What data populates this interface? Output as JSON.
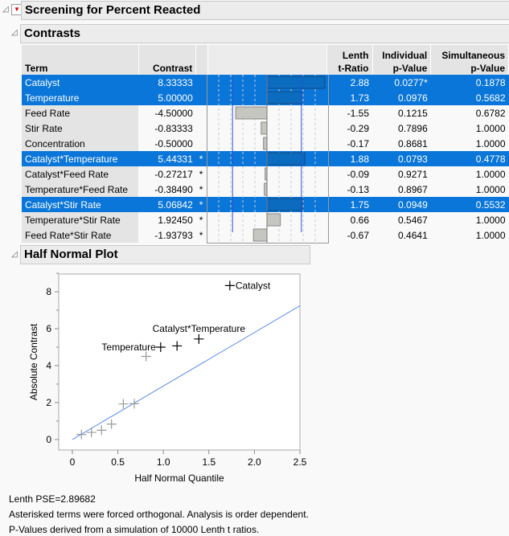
{
  "title": "Screening for Percent Reacted",
  "contrasts": {
    "title": "Contrasts",
    "headers": {
      "term": "Term",
      "contrast": "Contrast",
      "lenth1": "Lenth",
      "lenth2": "t-Ratio",
      "ind1": "Individual",
      "ind2": "p-Value",
      "sim1": "Simultaneous",
      "sim2": "p-Value"
    },
    "rows": [
      {
        "term": "Catalyst",
        "contrast": "8.33333",
        "star": "",
        "value": 8.33333,
        "t": "2.88",
        "ind": "0.0277*",
        "sim": "0.1878",
        "selected": true,
        "significant": true
      },
      {
        "term": "Temperature",
        "contrast": "5.00000",
        "star": "",
        "value": 5.0,
        "t": "1.73",
        "ind": "0.0976",
        "sim": "0.5682",
        "selected": true
      },
      {
        "term": "Feed Rate",
        "contrast": "-4.50000",
        "star": "",
        "value": -4.5,
        "t": "-1.55",
        "ind": "0.1215",
        "sim": "0.6782"
      },
      {
        "term": "Stir Rate",
        "contrast": "-0.83333",
        "star": "",
        "value": -0.83333,
        "t": "-0.29",
        "ind": "0.7896",
        "sim": "1.0000"
      },
      {
        "term": "Concentration",
        "contrast": "-0.50000",
        "star": "",
        "value": -0.5,
        "t": "-0.17",
        "ind": "0.8681",
        "sim": "1.0000"
      },
      {
        "term": "Catalyst*Temperature",
        "contrast": "5.44331",
        "star": "*",
        "value": 5.44331,
        "t": "1.88",
        "ind": "0.0793",
        "sim": "0.4778",
        "selected": true
      },
      {
        "term": "Catalyst*Feed Rate",
        "contrast": "-0.27217",
        "star": "*",
        "value": -0.27217,
        "t": "-0.09",
        "ind": "0.9271",
        "sim": "1.0000"
      },
      {
        "term": "Temperature*Feed Rate",
        "contrast": "-0.38490",
        "star": "*",
        "value": -0.3849,
        "t": "-0.13",
        "ind": "0.8967",
        "sim": "1.0000"
      },
      {
        "term": "Catalyst*Stir Rate",
        "contrast": "5.06842",
        "star": "*",
        "value": 5.06842,
        "t": "1.75",
        "ind": "0.0949",
        "sim": "0.5532",
        "selected": true
      },
      {
        "term": "Temperature*Stir Rate",
        "contrast": "1.92450",
        "star": "*",
        "value": 1.9245,
        "t": "0.66",
        "ind": "0.5467",
        "sim": "1.0000"
      },
      {
        "term": "Feed Rate*Stir Rate",
        "contrast": "-1.93793",
        "star": "*",
        "value": -1.93793,
        "t": "-0.67",
        "ind": "0.4641",
        "sim": "1.0000"
      }
    ]
  },
  "chart_data": {
    "type": "scatter",
    "title": "Half Normal Plot",
    "xlabel": "Half Normal Quantile",
    "ylabel": "Absolute Contrast",
    "xlim": [
      -0.15,
      2.5
    ],
    "ylim": [
      -0.57,
      8.96
    ],
    "xticks": [
      "0",
      "0.5",
      "1.0",
      "1.5",
      "2.0",
      "2.5"
    ],
    "xtick_values": [
      0,
      0.5,
      1,
      1.5,
      2,
      2.5
    ],
    "yticks": [
      "0",
      "2",
      "4",
      "6",
      "8"
    ],
    "ytick_values": [
      0,
      2,
      4,
      6,
      8
    ],
    "points": [
      {
        "x": 0.1,
        "y": 0.272,
        "label": "",
        "color": "#999999"
      },
      {
        "x": 0.21,
        "y": 0.385,
        "label": "",
        "color": "#999999"
      },
      {
        "x": 0.32,
        "y": 0.5,
        "label": "",
        "color": "#999999"
      },
      {
        "x": 0.43,
        "y": 0.833,
        "label": "",
        "color": "#999999"
      },
      {
        "x": 0.56,
        "y": 1.925,
        "label": "",
        "color": "#999999"
      },
      {
        "x": 0.68,
        "y": 1.938,
        "label": "",
        "color": "#999999"
      },
      {
        "x": 0.81,
        "y": 4.5,
        "label": "",
        "color": "#999999"
      },
      {
        "x": 0.97,
        "y": 5.0,
        "label": "Temperature",
        "pos": "left",
        "color": "#000000"
      },
      {
        "x": 1.15,
        "y": 5.068,
        "label": "",
        "color": "#000000"
      },
      {
        "x": 1.39,
        "y": 5.443,
        "label": "Catalyst*Temperature",
        "pos": "above",
        "color": "#000000"
      },
      {
        "x": 1.73,
        "y": 8.333,
        "label": "Catalyst",
        "pos": "right",
        "color": "#000000"
      }
    ],
    "line": {
      "slope": 2.89682,
      "color": "#5b8cf0"
    }
  },
  "notes": [
    "Lenth PSE=2.89682",
    "Asterisked terms were forced orthogonal. Analysis is order dependent.",
    "P-Values derived from a simulation of 10000 Lenth t ratios."
  ]
}
